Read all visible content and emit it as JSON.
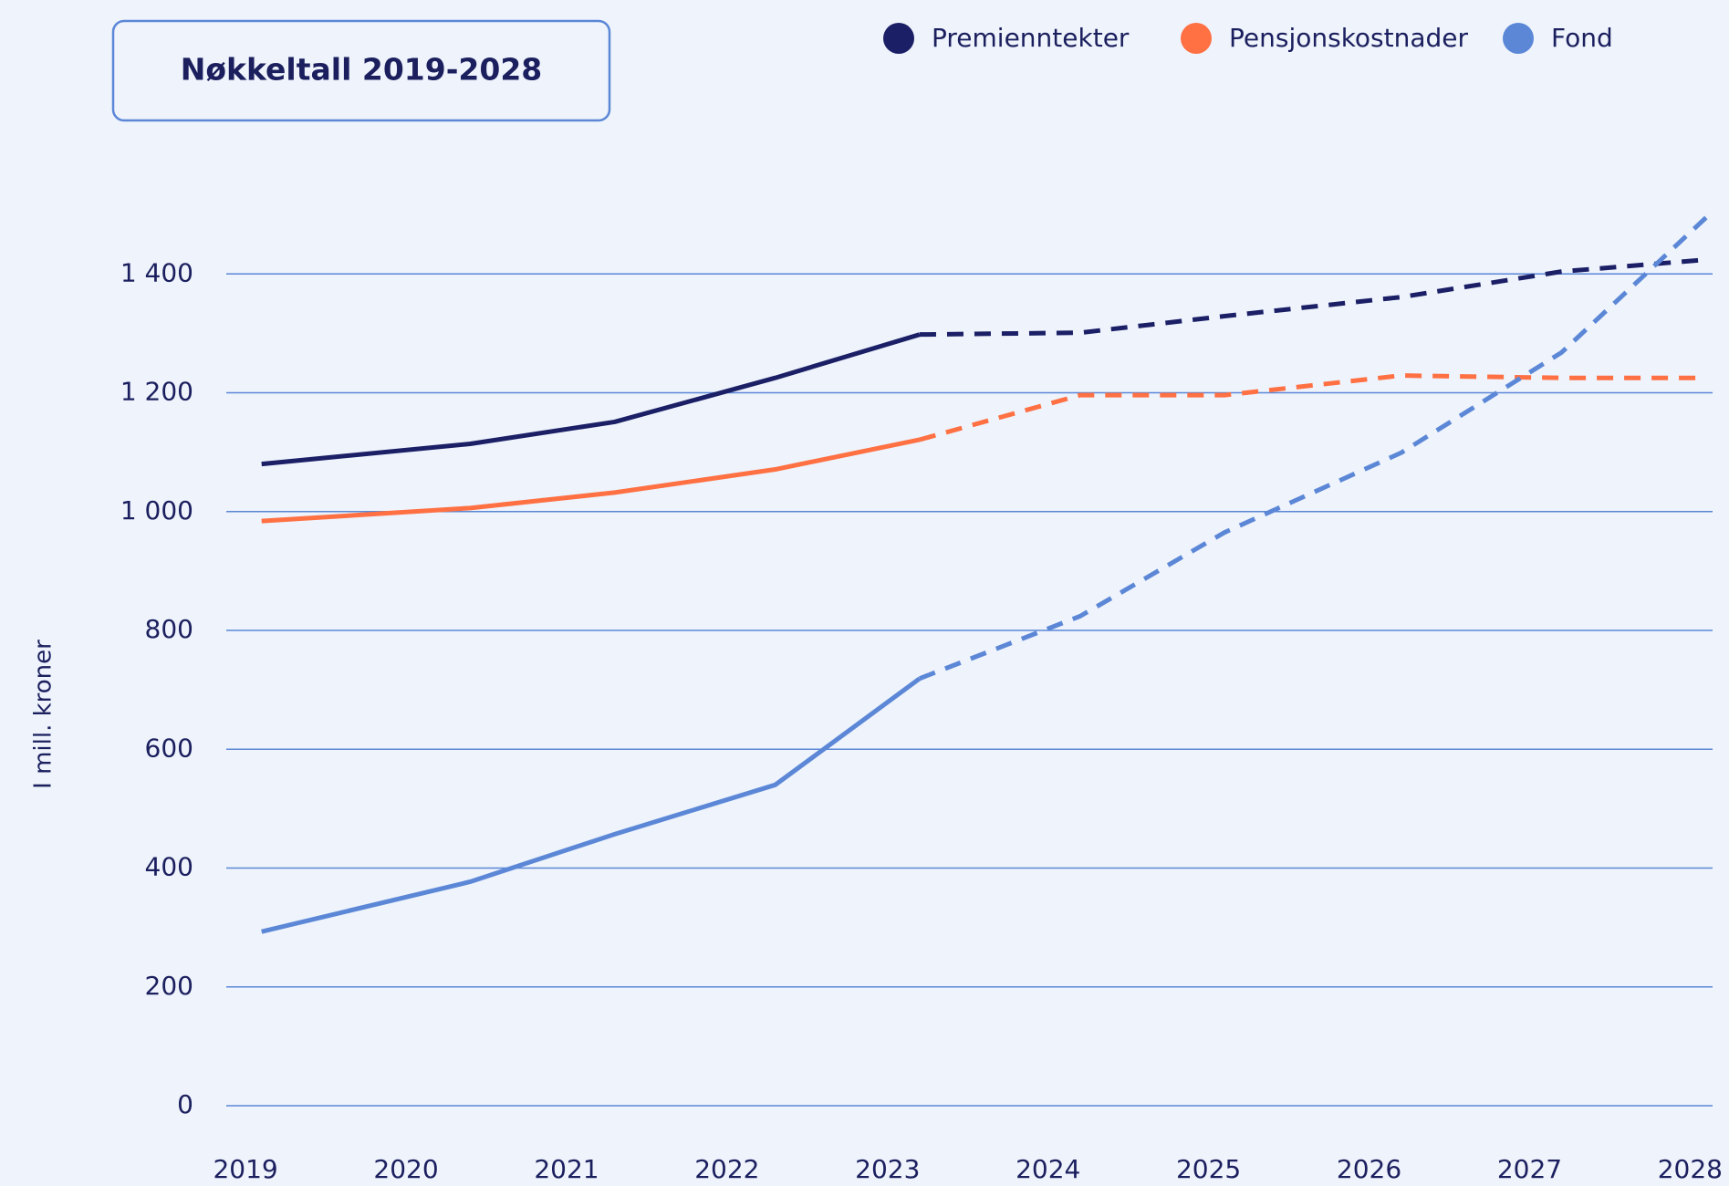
{
  "chart_data": {
    "type": "line",
    "title": "Nøkkeltall 2019-2028",
    "y_label": "I mill. kroner",
    "x": [
      2019.1,
      2020.4,
      2021.3,
      2022.3,
      2023.2,
      2024.2,
      2025.1,
      2026.2,
      2027.2,
      2028.1
    ],
    "forecast_start_index": 4,
    "series": [
      {
        "name": "Premienntekter",
        "color": "#1b1f66",
        "values": [
          1080,
          1114,
          1151,
          1225,
          1298,
          1301,
          1329,
          1361,
          1404,
          1424
        ]
      },
      {
        "name": "Pensjonskostnader",
        "color": "#ff7043",
        "values": [
          984,
          1006,
          1032,
          1071,
          1121,
          1196,
          1196,
          1229,
          1225,
          1225
        ]
      },
      {
        "name": "Fond",
        "color": "#5b87d6",
        "values": [
          293,
          377,
          457,
          540,
          719,
          824,
          965,
          1099,
          1268,
          1495
        ]
      }
    ],
    "xlim": [
      2018.88,
      2028.14
    ],
    "xticks": [
      2019,
      2020,
      2021,
      2022,
      2023,
      2024,
      2025,
      2026,
      2027,
      2028
    ],
    "ylim": [
      0,
      1600
    ],
    "yticks": [
      0,
      200,
      400,
      600,
      800,
      {
        "value": 1000,
        "label": "1 000"
      },
      {
        "value": 1200,
        "label": "1 200"
      },
      {
        "value": 1400,
        "label": "1 400"
      }
    ],
    "grid": true
  }
}
